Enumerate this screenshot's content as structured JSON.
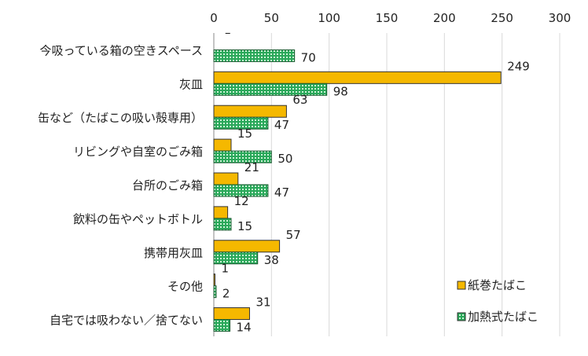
{
  "chart_data": {
    "type": "bar",
    "orientation": "horizontal",
    "categories": [
      "今吸っている箱の空きスペース",
      "灰皿",
      "缶など（たばこの吸い殻専用）",
      "リビングや自室のごみ箱",
      "台所のごみ箱",
      "飲料の缶やペットボトル",
      "携帯用灰皿",
      "その他",
      "自宅では吸わない／捨てない"
    ],
    "series": [
      {
        "name": "紙巻たばこ",
        "values": [
          null,
          249,
          63,
          15,
          21,
          12,
          57,
          1,
          31
        ],
        "labels": [
          "–",
          "249",
          "63",
          "15",
          "21",
          "12",
          "57",
          "1",
          "31"
        ],
        "color": "#f5b800"
      },
      {
        "name": "加熱式たばこ",
        "values": [
          70,
          98,
          47,
          50,
          47,
          15,
          38,
          2,
          14
        ],
        "labels": [
          "70",
          "98",
          "47",
          "50",
          "47",
          "15",
          "38",
          "2",
          "14"
        ],
        "color": "#2aa85a"
      }
    ],
    "xlim": [
      0,
      300
    ],
    "xticks": [
      "0",
      "50",
      "100",
      "150",
      "200",
      "250",
      "300"
    ],
    "grid": true,
    "legend": "bottom-right"
  }
}
